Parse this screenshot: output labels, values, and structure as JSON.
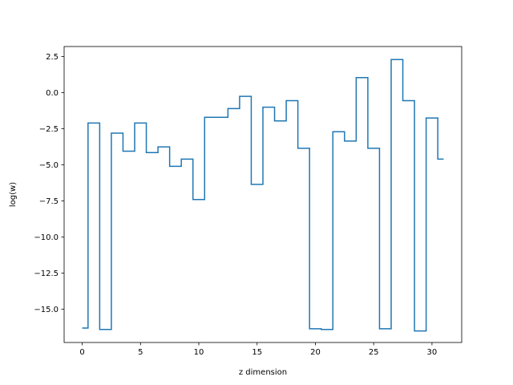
{
  "chart_data": {
    "type": "line",
    "style": "step-mid",
    "title": "",
    "xlabel": "z dimension",
    "ylabel": "log(w)",
    "xlim": [
      -1.55,
      32.55
    ],
    "ylim": [
      -17.3,
      3.2
    ],
    "x_ticks": [
      0,
      5,
      10,
      15,
      20,
      25,
      30
    ],
    "x_tick_labels": [
      "0",
      "5",
      "10",
      "15",
      "20",
      "25",
      "30"
    ],
    "y_ticks": [
      -15.0,
      -12.5,
      -10.0,
      -7.5,
      -5.0,
      -2.5,
      0.0,
      2.5
    ],
    "y_tick_labels": [
      "−15.0",
      "−12.5",
      "−10.0",
      "−7.5",
      "−5.0",
      "−2.5",
      "0.0",
      "2.5"
    ],
    "grid": false,
    "legend": "none",
    "line_color": "#1f77b4",
    "series": [
      {
        "x": [
          0,
          1,
          2,
          3,
          4,
          5,
          6,
          7,
          8,
          9,
          10,
          11,
          12,
          13,
          14,
          15,
          16,
          17,
          18,
          19,
          20,
          21,
          22,
          23,
          24,
          25,
          26,
          27,
          28,
          29,
          30,
          31
        ],
        "values": [
          -16.3,
          -2.1,
          -16.4,
          -2.8,
          -4.05,
          -2.1,
          -4.15,
          -3.75,
          -5.1,
          -4.6,
          -7.4,
          -1.7,
          -1.7,
          -1.1,
          -0.25,
          -6.35,
          -1.0,
          -1.95,
          -0.55,
          -3.85,
          -16.35,
          -16.4,
          -2.7,
          -3.35,
          1.05,
          -3.85,
          -16.35,
          2.3,
          -0.55,
          -16.5,
          -1.75,
          -4.6
        ]
      }
    ]
  }
}
